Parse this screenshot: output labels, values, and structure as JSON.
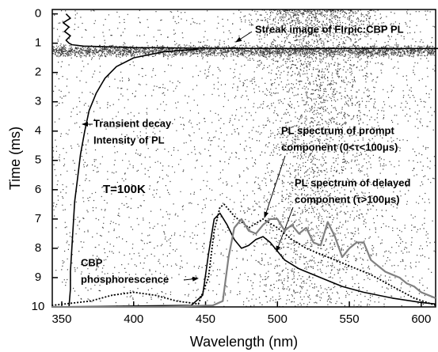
{
  "chart_data": {
    "type": "line",
    "xlabel": "Wavelength (nm)",
    "ylabel": "Time (ms)",
    "xlim": [
      343.4,
      610
    ],
    "ylim": [
      -0.15,
      10
    ],
    "xticks": [
      350,
      400,
      450,
      500,
      550,
      600
    ],
    "yticks": [
      0,
      1,
      2,
      3,
      4,
      5,
      6,
      7,
      8,
      9,
      10
    ],
    "y_inverted": true,
    "series": [
      {
        "color": "#000000",
        "style": "solid",
        "x": [
          353,
          356,
          351,
          355,
          352,
          356,
          353,
          355,
          357,
          365,
          400,
          450,
          500,
          550,
          612,
          null,
          445,
          420,
          400,
          388,
          380,
          374,
          369,
          366,
          363,
          361,
          359,
          358,
          357,
          356,
          356,
          355
        ],
        "values": [
          0,
          0.15,
          0.3,
          0.45,
          0.6,
          0.75,
          0.9,
          1.0,
          1.05,
          1.1,
          1.15,
          1.17,
          1.18,
          1.18,
          1.18,
          null,
          1.2,
          1.3,
          1.5,
          1.8,
          2.2,
          2.7,
          3.3,
          4.0,
          4.8,
          5.6,
          6.4,
          7.2,
          8.0,
          8.8,
          9.4,
          10
        ]
      },
      {
        "color": "#000000",
        "style": "solid",
        "x": [
          343,
          440,
          448,
          452,
          456,
          460,
          465,
          470,
          475,
          480,
          485,
          490,
          495,
          500,
          505,
          515,
          530,
          545,
          560,
          580,
          600,
          610
        ],
        "values": [
          10,
          9.95,
          9.6,
          8.2,
          7.0,
          6.8,
          7.2,
          7.7,
          8.0,
          7.9,
          7.7,
          7.6,
          7.8,
          8.1,
          8.4,
          8.7,
          9.0,
          9.3,
          9.5,
          9.7,
          9.85,
          9.9
        ]
      },
      {
        "color": "#000000",
        "style": "dotted",
        "x": [
          343,
          370,
          385,
          400,
          415,
          430,
          445,
          452,
          456,
          460,
          463,
          470,
          480,
          490,
          500,
          510,
          520,
          535,
          550,
          565,
          580,
          595,
          610
        ],
        "values": [
          9.95,
          9.8,
          9.6,
          9.5,
          9.6,
          9.8,
          9.9,
          9.0,
          7.4,
          6.6,
          6.5,
          6.9,
          7.3,
          7.0,
          7.3,
          7.7,
          8.0,
          8.3,
          8.6,
          8.9,
          9.3,
          9.7,
          9.95
        ]
      },
      {
        "color": "#808080",
        "style": "solid",
        "x": [
          343,
          420,
          455,
          462,
          466,
          470,
          475,
          480,
          485,
          490,
          495,
          500,
          505,
          510,
          515,
          520,
          525,
          530,
          535,
          540,
          545,
          550,
          555,
          560,
          565,
          570,
          575,
          580,
          585,
          590,
          595,
          600,
          605,
          610
        ],
        "values": [
          10,
          10,
          9.95,
          9.8,
          8.3,
          7.3,
          7.0,
          7.4,
          7.5,
          7.2,
          7.0,
          7.0,
          7.4,
          7.2,
          7.5,
          7.3,
          7.8,
          7.9,
          7.1,
          7.6,
          8.3,
          8.0,
          7.8,
          7.8,
          8.4,
          8.6,
          8.8,
          8.9,
          9.0,
          9.2,
          9.3,
          9.5,
          9.6,
          9.7
        ]
      }
    ],
    "annotations": [
      "Streak image of FIrpic:CBP PL",
      "Transient decay",
      "Intensity of PL",
      "T=100K",
      "PL spectrum of prompt",
      "component (0<τ<100μs)",
      "PL spectrum of delayed",
      "component (τ>100μs)",
      "CBP",
      "phosphorescence"
    ]
  }
}
